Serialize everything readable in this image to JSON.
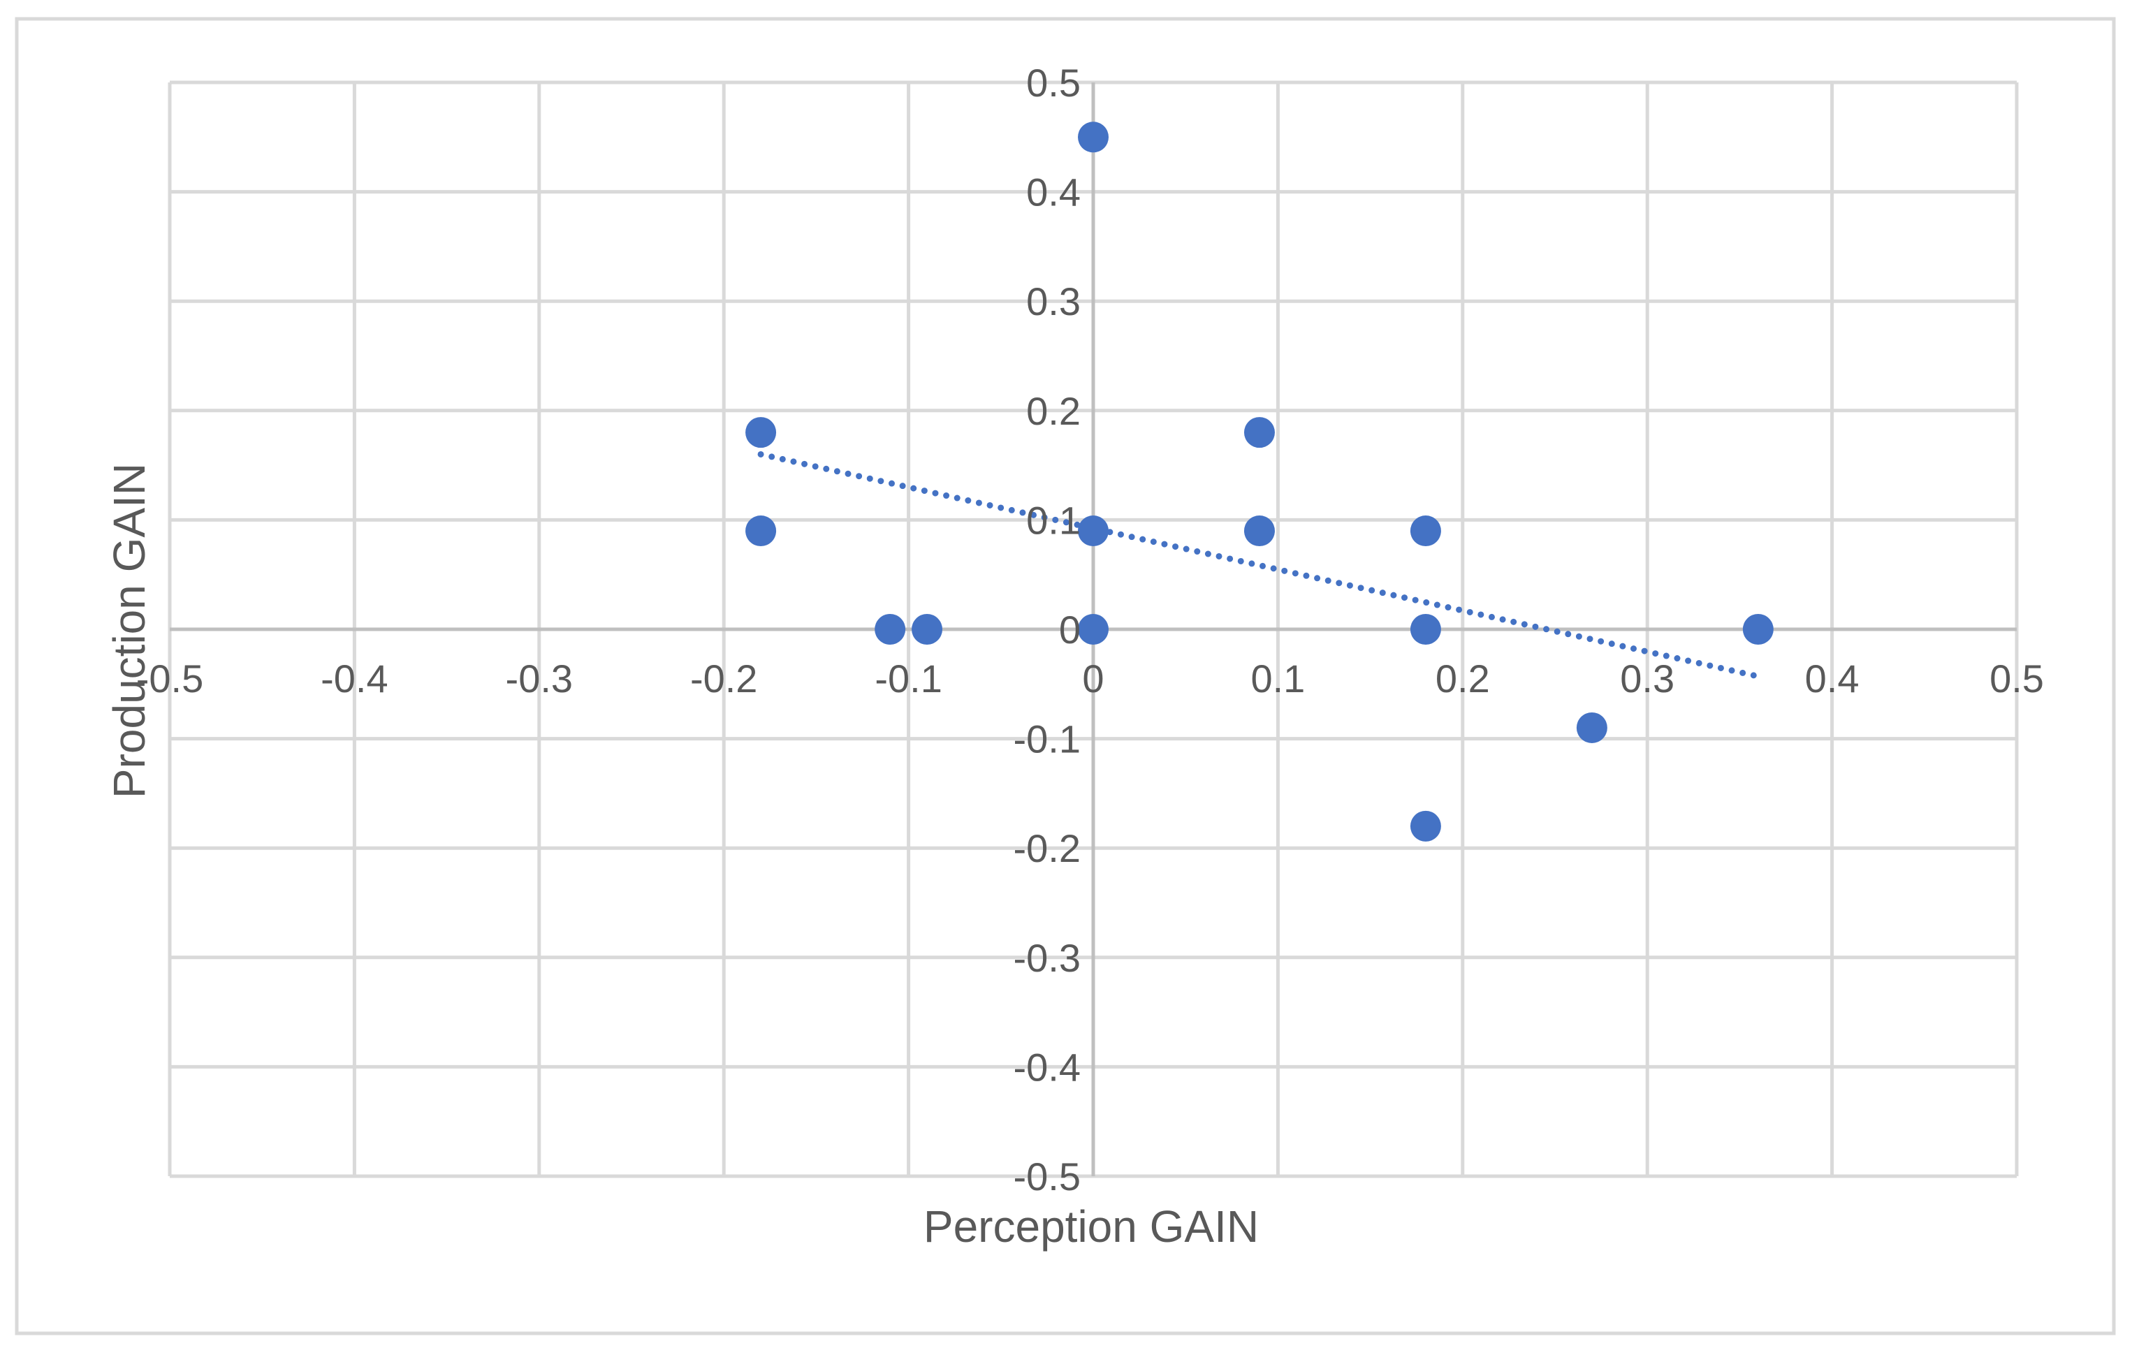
{
  "chart_data": {
    "type": "scatter",
    "title": "",
    "xlabel": "Perception GAIN",
    "ylabel": "Production GAIN",
    "xlim": [
      -0.5,
      0.5
    ],
    "ylim": [
      -0.5,
      0.5
    ],
    "x_ticks": [
      -0.5,
      -0.4,
      -0.3,
      -0.2,
      -0.1,
      0,
      0.1,
      0.2,
      0.3,
      0.4,
      0.5
    ],
    "y_ticks": [
      -0.5,
      -0.4,
      -0.3,
      -0.2,
      -0.1,
      0,
      0.1,
      0.2,
      0.3,
      0.4,
      0.5
    ],
    "x_tick_labels": [
      "-0.5",
      "-0.4",
      "-0.3",
      "-0.2",
      "-0.1",
      "0",
      "0.1",
      "0.2",
      "0.3",
      "0.4",
      "0.5"
    ],
    "y_tick_labels": [
      "-0.5",
      "-0.4",
      "-0.3",
      "-0.2",
      "-0.1",
      "0",
      "0.1",
      "0.2",
      "0.3",
      "0.4",
      "0.5"
    ],
    "grid": true,
    "legend": "none",
    "series": [
      {
        "points": [
          {
            "x": 0,
            "y": 0.45
          },
          {
            "x": -0.18,
            "y": 0.18
          },
          {
            "x": 0.09,
            "y": 0.18
          },
          {
            "x": -0.18,
            "y": 0.09
          },
          {
            "x": 0,
            "y": 0.09
          },
          {
            "x": 0.09,
            "y": 0.09
          },
          {
            "x": 0.18,
            "y": 0.09
          },
          {
            "x": -0.11,
            "y": 0
          },
          {
            "x": -0.09,
            "y": 0
          },
          {
            "x": 0,
            "y": 0
          },
          {
            "x": 0.18,
            "y": 0
          },
          {
            "x": 0.36,
            "y": 0
          },
          {
            "x": 0.27,
            "y": -0.09
          },
          {
            "x": 0.18,
            "y": -0.18
          }
        ]
      }
    ],
    "trendline": {
      "type": "linear",
      "style": "dotted",
      "from": {
        "x": -0.18,
        "y": 0.16
      },
      "to": {
        "x": 0.36,
        "y": -0.043
      }
    },
    "colors": {
      "marker": "#4472C4",
      "trendline": "#4472C4",
      "grid": "#D9D9D9",
      "axis": "#BFBFBF",
      "text": "#595959",
      "frame": "#D9D9D9"
    }
  }
}
